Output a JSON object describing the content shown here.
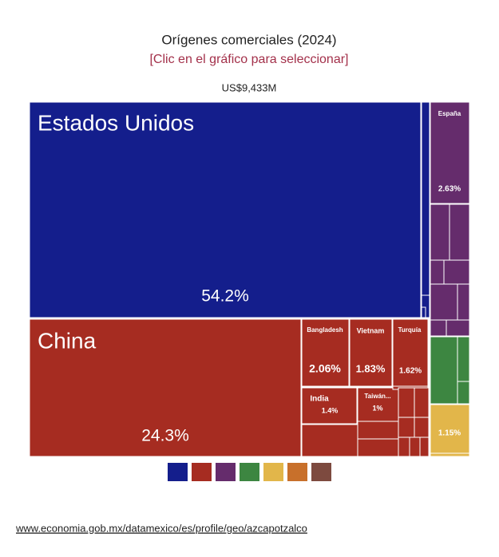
{
  "chart_data": {
    "type": "treemap",
    "title": "Orígenes comerciales (2024)",
    "subtitle": "[Clic en el gráfico para seleccionar]",
    "total": "US$9,433M",
    "categories": [
      "Estados Unidos",
      "China",
      "Bangladesh",
      "Vietnam",
      "Turquía",
      "India",
      "Taiwán...",
      "España",
      null
    ],
    "values": [
      54.2,
      24.3,
      2.06,
      1.83,
      1.62,
      1.4,
      1,
      2.63,
      1.15
    ],
    "value_labels": [
      "54.2%",
      "24.3%",
      "2.06%",
      "1.83%",
      "1.62%",
      "1.4%",
      "1%",
      "2.63%",
      "1.15%"
    ],
    "colors": [
      "#141e8c",
      "#a62c21",
      "#a62c21",
      "#a62c21",
      "#a62c21",
      "#a62c21",
      "#a62c21",
      "#652c6c",
      "#e2b64a"
    ],
    "legend_colors": [
      "#141e8c",
      "#a62c21",
      "#652c6c",
      "#3d8641",
      "#e2b64a",
      "#c8702b",
      "#7d4a3f"
    ],
    "source": "www.economia.gob.mx/datamexico/es/profile/geo/azcapotzalco"
  }
}
